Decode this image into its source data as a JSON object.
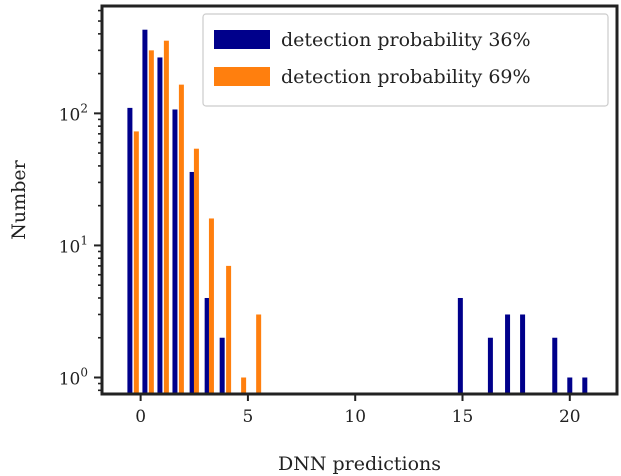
{
  "chart_data": {
    "type": "bar",
    "xlabel": "DNN predictions",
    "ylabel": "Number",
    "xlim": [
      -1.8,
      22.2
    ],
    "ylim": [
      0.75,
      650
    ],
    "yscale": "log",
    "grid": false,
    "legend_position": "top-right",
    "xticks": [
      {
        "value": 0,
        "label": "0"
      },
      {
        "value": 5,
        "label": "5"
      },
      {
        "value": 10,
        "label": "10"
      },
      {
        "value": 15,
        "label": "15"
      },
      {
        "value": 20,
        "label": "20"
      }
    ],
    "yticks": [
      {
        "value": 1,
        "base": "10",
        "exp": "0"
      },
      {
        "value": 10,
        "base": "10",
        "exp": "1"
      },
      {
        "value": 100,
        "base": "10",
        "exp": "2"
      }
    ],
    "series": [
      {
        "name": "detection probability 36%",
        "color": "#00008b",
        "x": [
          -0.5,
          0.2,
          0.9,
          1.6,
          2.4,
          3.1,
          3.8,
          14.9,
          16.3,
          17.1,
          17.8,
          19.3,
          20.0,
          20.7
        ],
        "values": [
          110,
          430,
          265,
          107,
          36,
          4,
          2,
          4,
          2,
          3,
          3,
          2,
          1,
          1
        ]
      },
      {
        "name": "detection probability 69%",
        "color": "#ff7f0e",
        "x": [
          -0.2,
          0.5,
          1.2,
          1.9,
          2.6,
          3.3,
          4.1,
          4.8,
          5.5
        ],
        "values": [
          73,
          300,
          355,
          165,
          54,
          16,
          7,
          1,
          3
        ]
      }
    ]
  }
}
